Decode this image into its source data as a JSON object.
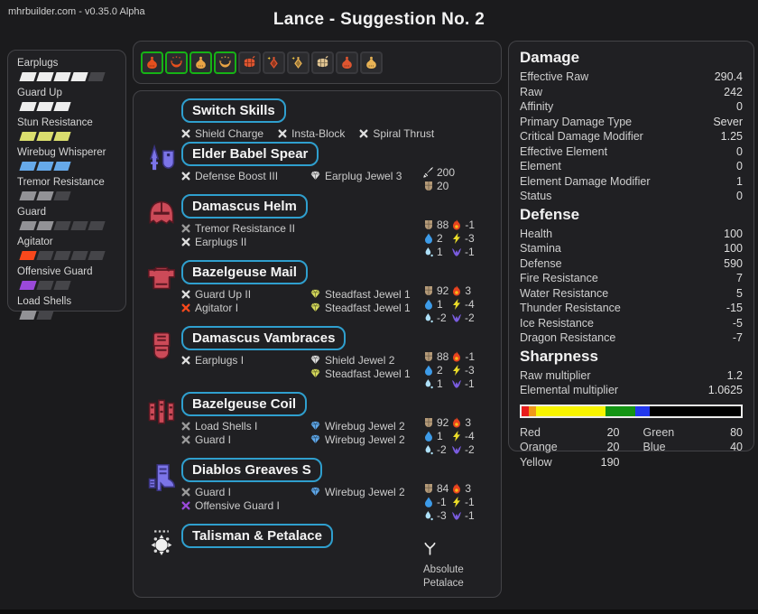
{
  "header": {
    "brand": "mhrbuilder.com - v0.35.0 Alpha",
    "title": "Lance - Suggestion No. 2"
  },
  "skills": {
    "items": [
      {
        "name": "Earplugs",
        "level": 4,
        "max": 5,
        "color": "#ededed"
      },
      {
        "name": "Guard Up",
        "level": 3,
        "max": 3,
        "color": "#ededed"
      },
      {
        "name": "Stun Resistance",
        "level": 3,
        "max": 3,
        "color": "#dade6e"
      },
      {
        "name": "Wirebug Whisperer",
        "level": 3,
        "max": 3,
        "color": "#66a9e9"
      },
      {
        "name": "Tremor Resistance",
        "level": 2,
        "max": 3,
        "color": "#929296"
      },
      {
        "name": "Guard",
        "level": 2,
        "max": 5,
        "color": "#929296"
      },
      {
        "name": "Agitator",
        "level": 1,
        "max": 5,
        "color": "#f8481c"
      },
      {
        "name": "Offensive Guard",
        "level": 1,
        "max": 3,
        "color": "#9a49d9"
      },
      {
        "name": "Load Shells",
        "level": 1,
        "max": 2,
        "color": "#929296"
      }
    ]
  },
  "buffs": {
    "items": [
      {
        "name": "demondrug",
        "shape": "pouch",
        "color": "#e6501e",
        "selected": true
      },
      {
        "name": "might-seed",
        "shape": "seed",
        "color": "#e6501e",
        "selected": true
      },
      {
        "name": "armorskin",
        "shape": "pouch",
        "color": "#e9a445",
        "selected": true
      },
      {
        "name": "adamant-seed",
        "shape": "seed",
        "color": "#e9a445",
        "selected": true
      },
      {
        "name": "demon-powder",
        "shape": "barrel",
        "color": "#df5530",
        "selected": false
      },
      {
        "name": "mega-demondrug",
        "shape": "flask",
        "color": "#df5530",
        "selected": false
      },
      {
        "name": "mega-armorskin",
        "shape": "flask",
        "color": "#e9b355",
        "selected": false
      },
      {
        "name": "hardshell-powder",
        "shape": "barrel",
        "color": "#dfc391",
        "selected": false
      },
      {
        "name": "powercharm",
        "shape": "pouch",
        "color": "#df5530",
        "selected": false
      },
      {
        "name": "armorcharm",
        "shape": "pouch",
        "color": "#e9b355",
        "selected": false
      }
    ]
  },
  "switch_skills": {
    "title": "Switch Skills",
    "entries": [
      {
        "label": "Shield Charge",
        "color": "#dedede"
      },
      {
        "label": "Insta-Block",
        "color": "#dedede"
      },
      {
        "label": "Spiral Thrust",
        "color": "#dedede"
      }
    ]
  },
  "equipment": [
    {
      "icon": "lance-icon",
      "name": "Elder Babel Spear",
      "skills": [
        {
          "label": "Defense Boost III",
          "color": "#dedede"
        }
      ],
      "jewels": [
        {
          "label": "Earplug Jewel 3",
          "color": "#dedede"
        }
      ],
      "attack": "200",
      "bonus_defense": "20"
    },
    {
      "icon": "helm-icon",
      "name": "Damascus Helm",
      "skills": [
        {
          "label": "Tremor Resistance II",
          "color": "#9a9a9a"
        },
        {
          "label": "Earplugs II",
          "color": "#dedede"
        }
      ],
      "jewels": [],
      "def": "88",
      "fire": "-1",
      "water": "2",
      "thunder": "-3",
      "ice": "1",
      "dragon": "-1"
    },
    {
      "icon": "mail-icon",
      "name": "Bazelgeuse Mail",
      "skills": [
        {
          "label": "Guard Up II",
          "color": "#dedede"
        },
        {
          "label": "Agitator I",
          "color": "#f8481c"
        }
      ],
      "jewels": [
        {
          "label": "Steadfast Jewel 1",
          "color": "#d6da5c"
        },
        {
          "label": "Steadfast Jewel 1",
          "color": "#d6da5c"
        }
      ],
      "def": "92",
      "fire": "3",
      "water": "1",
      "thunder": "-4",
      "ice": "-2",
      "dragon": "-2"
    },
    {
      "icon": "vambraces-icon",
      "name": "Damascus Vambraces",
      "skills": [
        {
          "label": "Earplugs I",
          "color": "#dedede"
        }
      ],
      "jewels": [
        {
          "label": "Shield Jewel 2",
          "color": "#dedede"
        },
        {
          "label": "Steadfast Jewel 1",
          "color": "#d6da5c"
        }
      ],
      "def": "88",
      "fire": "-1",
      "water": "2",
      "thunder": "-3",
      "ice": "1",
      "dragon": "-1"
    },
    {
      "icon": "coil-icon",
      "name": "Bazelgeuse Coil",
      "skills": [
        {
          "label": "Load Shells I",
          "color": "#9a9a9a"
        },
        {
          "label": "Guard I",
          "color": "#9a9a9a"
        }
      ],
      "jewels": [
        {
          "label": "Wirebug Jewel 2",
          "color": "#5fa8ea"
        },
        {
          "label": "Wirebug Jewel 2",
          "color": "#5fa8ea"
        }
      ],
      "def": "92",
      "fire": "3",
      "water": "1",
      "thunder": "-4",
      "ice": "-2",
      "dragon": "-2"
    },
    {
      "icon": "greaves-icon",
      "name": "Diablos Greaves S",
      "skills": [
        {
          "label": "Guard I",
          "color": "#9a9a9a"
        },
        {
          "label": "Offensive Guard I",
          "color": "#9a49d9"
        }
      ],
      "jewels": [
        {
          "label": "Wirebug Jewel 2",
          "color": "#5fa8ea"
        }
      ],
      "def": "84",
      "fire": "3",
      "water": "-1",
      "thunder": "-1",
      "ice": "-3",
      "dragon": "-1"
    },
    {
      "icon": "talisman-icon",
      "name": "Talisman & Petalace",
      "petalace": "Absolute Petalace"
    }
  ],
  "panel": {
    "damage": {
      "title": "Damage",
      "rows": [
        {
          "label": "Effective Raw",
          "value": "290.4"
        },
        {
          "label": "Raw",
          "value": "242"
        },
        {
          "label": "Affinity",
          "value": "0"
        },
        {
          "label": "Primary Damage Type",
          "value": "Sever"
        },
        {
          "label": "Critical Damage Modifier",
          "value": "1.25"
        },
        {
          "label": "Effective Element",
          "value": "0"
        },
        {
          "label": "Element",
          "value": "0"
        },
        {
          "label": "Element Damage Modifier",
          "value": "1"
        },
        {
          "label": "Status",
          "value": "0"
        }
      ]
    },
    "defense": {
      "title": "Defense",
      "rows": [
        {
          "label": "Health",
          "value": "100"
        },
        {
          "label": "Stamina",
          "value": "100"
        },
        {
          "label": "Defense",
          "value": "590"
        },
        {
          "label": "Fire Resistance",
          "value": "7"
        },
        {
          "label": "Water Resistance",
          "value": "5"
        },
        {
          "label": "Thunder Resistance",
          "value": "-15"
        },
        {
          "label": "Ice Resistance",
          "value": "-5"
        },
        {
          "label": "Dragon Resistance",
          "value": "-7"
        }
      ]
    },
    "sharpness": {
      "title": "Sharpness",
      "rows": [
        {
          "label": "Raw multiplier",
          "value": "1.2"
        },
        {
          "label": "Elemental multiplier",
          "value": "1.0625"
        }
      ],
      "bar": {
        "total": 600,
        "segments": [
          {
            "name": "red",
            "color": "#e81c1c",
            "value": 20
          },
          {
            "name": "orange",
            "color": "#f09818",
            "value": 20
          },
          {
            "name": "yellow",
            "color": "#f8f400",
            "value": 190
          },
          {
            "name": "green",
            "color": "#149414",
            "value": 80
          },
          {
            "name": "blue",
            "color": "#2238ee",
            "value": 40
          }
        ]
      },
      "legend": [
        {
          "label": "Red",
          "value": "20"
        },
        {
          "label": "Green",
          "value": "80"
        },
        {
          "label": "Orange",
          "value": "20"
        },
        {
          "label": "Blue",
          "value": "40"
        },
        {
          "label": "Yellow",
          "value": "190"
        }
      ]
    }
  }
}
